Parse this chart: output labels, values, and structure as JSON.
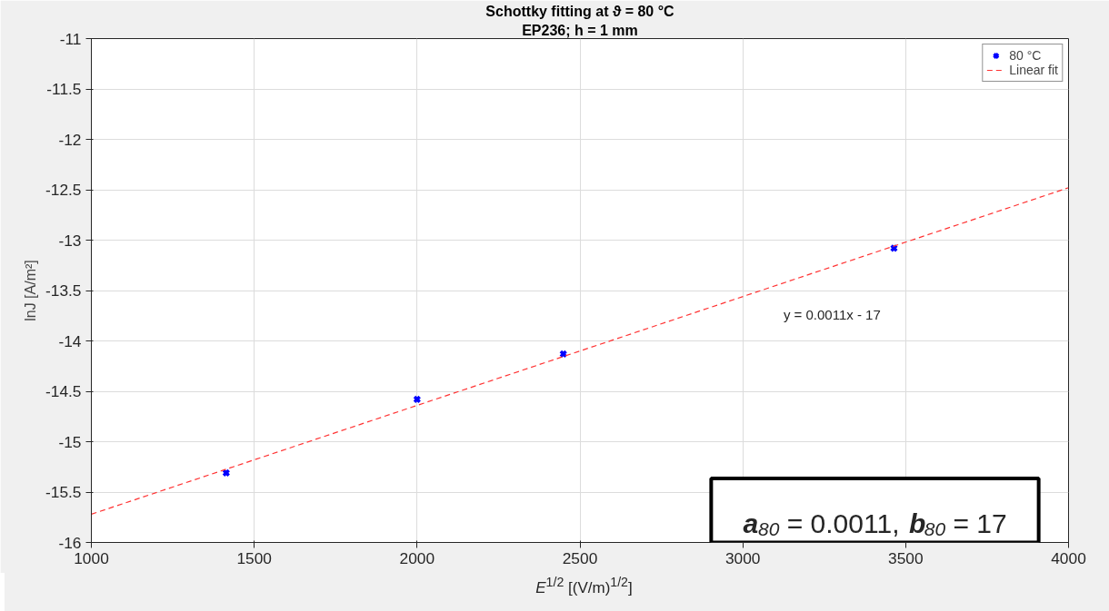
{
  "chart_data": {
    "type": "scatter",
    "title": "Schottky fitting at ϑ = 80 °C",
    "subtitle": "EP236; h = 1 mm",
    "xlabel": "E$^{1/2}$ [(V/m)$^{1/2}$]",
    "ylabel": "lnJ [A/m²]",
    "x": [
      1414,
      2000,
      2449,
      3464
    ],
    "series": [
      {
        "name": "80 °C",
        "color": "#0000ff",
        "marker": "cross",
        "values": [
          -15.31,
          -14.58,
          -14.13,
          -13.08
        ]
      },
      {
        "name": "Linear fit",
        "color": "#ff3333",
        "type": "line",
        "line_style": "dashed",
        "x": [
          1000,
          4000
        ],
        "values": [
          -15.72,
          -12.48
        ]
      }
    ],
    "xlim": [
      1000,
      4000
    ],
    "ylim": [
      -16,
      -11
    ],
    "xticks": [
      1000,
      1500,
      2000,
      2500,
      3000,
      3500,
      4000
    ],
    "yticks": [
      -16,
      -15.5,
      -15,
      -14.5,
      -14,
      -13.5,
      -13,
      -12.5,
      -12,
      -11.5,
      -11
    ],
    "grid": true,
    "legend": "top right",
    "annotations": [
      "y = 0.0011x - 17",
      "a$_{80}$ = 0.0011, b$_{80}$ = 17"
    ]
  }
}
